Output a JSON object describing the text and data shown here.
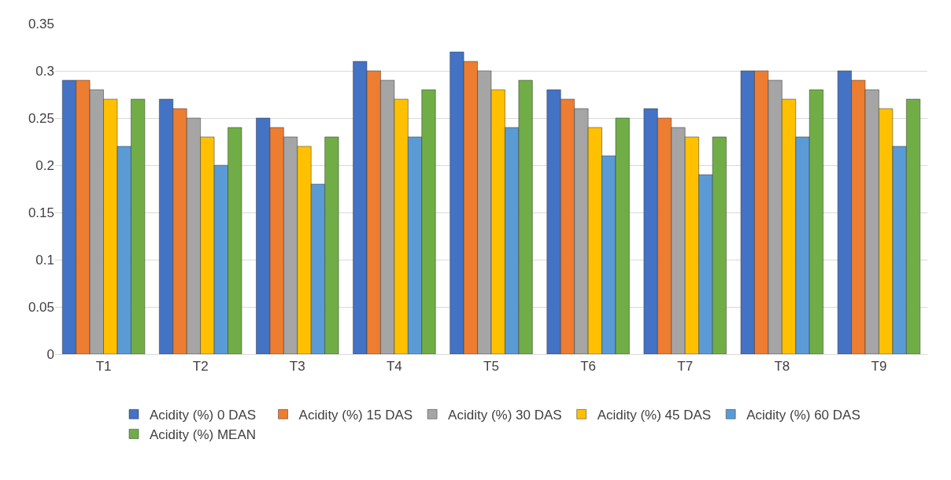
{
  "chart_data": {
    "type": "bar",
    "categories": [
      "T1",
      "T2",
      "T3",
      "T4",
      "T5",
      "T6",
      "T7",
      "T8",
      "T9"
    ],
    "series": [
      {
        "name": "Acidity (%) 0 DAS",
        "color": "#4472c4",
        "values": [
          0.29,
          0.27,
          0.25,
          0.31,
          0.32,
          0.28,
          0.26,
          0.3,
          0.3
        ]
      },
      {
        "name": "Acidity (%) 15 DAS",
        "color": "#ed7d31",
        "values": [
          0.29,
          0.26,
          0.24,
          0.3,
          0.31,
          0.27,
          0.25,
          0.3,
          0.29
        ]
      },
      {
        "name": "Acidity (%) 30 DAS",
        "color": "#a5a5a5",
        "values": [
          0.28,
          0.25,
          0.23,
          0.29,
          0.3,
          0.26,
          0.24,
          0.29,
          0.28
        ]
      },
      {
        "name": "Acidity (%) 45 DAS",
        "color": "#ffc000",
        "values": [
          0.27,
          0.23,
          0.22,
          0.27,
          0.28,
          0.24,
          0.23,
          0.27,
          0.26
        ]
      },
      {
        "name": "Acidity (%) 60 DAS",
        "color": "#5b9bd5",
        "values": [
          0.22,
          0.2,
          0.18,
          0.23,
          0.24,
          0.21,
          0.19,
          0.23,
          0.22
        ]
      },
      {
        "name": "Acidity (%) MEAN",
        "color": "#70ad47",
        "values": [
          0.27,
          0.24,
          0.23,
          0.28,
          0.29,
          0.25,
          0.23,
          0.28,
          0.27
        ]
      }
    ],
    "ylim": [
      0,
      0.35
    ],
    "yticks": [
      0,
      0.05,
      0.1,
      0.15,
      0.2,
      0.25,
      0.3,
      0.35
    ],
    "grid": "y",
    "legend": "bottom"
  }
}
